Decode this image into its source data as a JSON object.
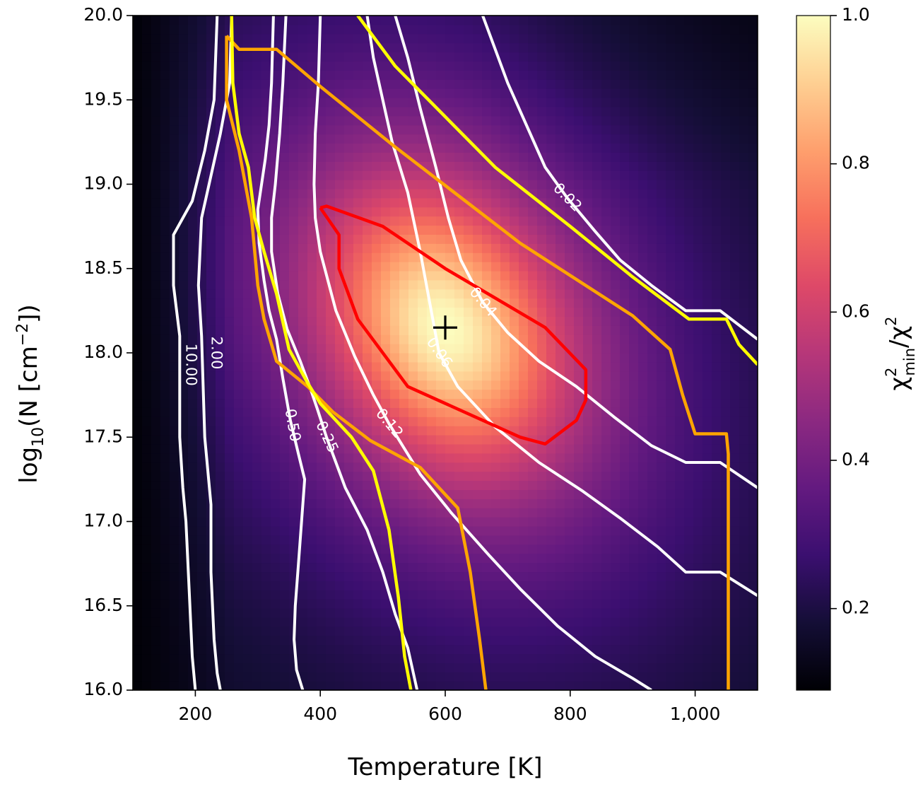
{
  "chart_data": {
    "type": "heatmap",
    "title": "",
    "xlabel": "Temperature [K]",
    "ylabel": {
      "main": "log",
      "sub": "10",
      "rest": "(N [cm",
      "sup": "−2",
      "end": "])"
    },
    "colorbar_label": {
      "main": "χ",
      "sup": "2",
      "sub": "min",
      "rest": "/χ",
      "sup2": "2"
    },
    "colormap": "magma",
    "xlim": [
      100,
      1100
    ],
    "ylim": [
      16.0,
      20.0
    ],
    "color_range": [
      0.09,
      1.0
    ],
    "x_ticks": [
      {
        "value": 200,
        "label": "200"
      },
      {
        "value": 400,
        "label": "400"
      },
      {
        "value": 600,
        "label": "600"
      },
      {
        "value": 800,
        "label": "800"
      },
      {
        "value": 1000,
        "label": "1,000"
      }
    ],
    "y_ticks": [
      {
        "value": 16.0,
        "label": "16.0"
      },
      {
        "value": 16.5,
        "label": "16.5"
      },
      {
        "value": 17.0,
        "label": "17.0"
      },
      {
        "value": 17.5,
        "label": "17.5"
      },
      {
        "value": 18.0,
        "label": "18.0"
      },
      {
        "value": 18.5,
        "label": "18.5"
      },
      {
        "value": 19.0,
        "label": "19.0"
      },
      {
        "value": 19.5,
        "label": "19.5"
      },
      {
        "value": 20.0,
        "label": "20.0"
      }
    ],
    "colorbar_ticks": [
      {
        "value": 0.2,
        "label": "0.2"
      },
      {
        "value": 0.4,
        "label": "0.4"
      },
      {
        "value": 0.6,
        "label": "0.6"
      },
      {
        "value": 0.8,
        "label": "0.8"
      },
      {
        "value": 1.0,
        "label": "1.0"
      }
    ],
    "best_fit": {
      "x": 600,
      "y": 18.15,
      "marker": "+"
    },
    "confidence_contours": [
      {
        "color": "#ff0000",
        "points": [
          [
            400,
            18.86
          ],
          [
            430,
            18.7
          ],
          [
            430,
            18.5
          ],
          [
            460,
            18.2
          ],
          [
            540,
            17.8
          ],
          [
            720,
            17.5
          ],
          [
            760,
            17.46
          ],
          [
            810,
            17.6
          ],
          [
            825,
            17.72
          ],
          [
            825,
            17.9
          ],
          [
            760,
            18.15
          ],
          [
            600,
            18.5
          ],
          [
            500,
            18.75
          ],
          [
            410,
            18.87
          ],
          [
            400,
            18.86
          ]
        ]
      },
      {
        "color": "#ffa500",
        "points": [
          [
            250,
            19.88
          ],
          [
            270,
            19.8
          ],
          [
            330,
            19.8
          ],
          [
            400,
            19.58
          ],
          [
            520,
            19.22
          ],
          [
            720,
            18.65
          ],
          [
            900,
            18.22
          ],
          [
            960,
            18.02
          ],
          [
            980,
            17.75
          ],
          [
            1000,
            17.52
          ],
          [
            1050,
            17.52
          ],
          [
            1053,
            17.4
          ],
          [
            1053,
            16.0
          ]
        ]
      },
      {
        "color": "#ffa500",
        "points": [
          [
            250,
            19.88
          ],
          [
            250,
            19.5
          ],
          [
            270,
            19.2
          ],
          [
            290,
            18.8
          ],
          [
            300,
            18.4
          ],
          [
            310,
            18.2
          ],
          [
            330,
            17.95
          ],
          [
            380,
            17.8
          ],
          [
            420,
            17.65
          ],
          [
            480,
            17.48
          ],
          [
            560,
            17.32
          ],
          [
            620,
            17.08
          ],
          [
            640,
            16.7
          ],
          [
            655,
            16.3
          ],
          [
            665,
            16.0
          ]
        ]
      },
      {
        "color": "#ffff00",
        "points": [
          [
            460,
            20.0
          ],
          [
            520,
            19.7
          ],
          [
            600,
            19.4
          ],
          [
            680,
            19.1
          ],
          [
            800,
            18.75
          ],
          [
            900,
            18.45
          ],
          [
            990,
            18.2
          ],
          [
            1050,
            18.2
          ],
          [
            1070,
            18.05
          ],
          [
            1100,
            17.93
          ]
        ]
      },
      {
        "color": "#ffff00",
        "points": [
          [
            258,
            20.0
          ],
          [
            260,
            19.6
          ],
          [
            270,
            19.3
          ],
          [
            285,
            19.1
          ],
          [
            295,
            18.8
          ],
          [
            310,
            18.6
          ],
          [
            330,
            18.35
          ],
          [
            350,
            18.02
          ],
          [
            380,
            17.82
          ],
          [
            400,
            17.7
          ],
          [
            450,
            17.5
          ],
          [
            485,
            17.3
          ],
          [
            510,
            16.95
          ],
          [
            525,
            16.55
          ],
          [
            535,
            16.2
          ],
          [
            545,
            16.0
          ]
        ]
      }
    ],
    "chi2_contours": [
      {
        "label": "10.00",
        "label_at": [
          192,
          17.93
        ],
        "label_rot": 90,
        "points": [
          [
            235,
            20.0
          ],
          [
            230,
            19.5
          ],
          [
            215,
            19.2
          ],
          [
            195,
            18.9
          ],
          [
            165,
            18.7
          ],
          [
            165,
            18.4
          ],
          [
            175,
            18.1
          ],
          [
            175,
            17.5
          ],
          [
            180,
            17.2
          ],
          [
            185,
            17.0
          ],
          [
            190,
            16.6
          ],
          [
            195,
            16.2
          ],
          [
            200,
            16.0
          ]
        ]
      },
      {
        "label": "2.00",
        "label_at": [
          233,
          18.0
        ],
        "label_rot": 90,
        "points": [
          [
            258,
            20.0
          ],
          [
            255,
            19.6
          ],
          [
            240,
            19.3
          ],
          [
            225,
            19.05
          ],
          [
            210,
            18.8
          ],
          [
            205,
            18.4
          ],
          [
            210,
            18.1
          ],
          [
            215,
            17.5
          ],
          [
            225,
            17.1
          ],
          [
            225,
            16.7
          ],
          [
            230,
            16.3
          ],
          [
            235,
            16.1
          ],
          [
            240,
            16.0
          ]
        ]
      },
      {
        "label": "0.50",
        "label_at": [
          355,
          17.57
        ],
        "label_rot": 80,
        "points": [
          [
            325,
            20.0
          ],
          [
            322,
            19.6
          ],
          [
            318,
            19.35
          ],
          [
            312,
            19.15
          ],
          [
            300,
            18.85
          ],
          [
            302,
            18.65
          ],
          [
            310,
            18.43
          ],
          [
            318,
            18.25
          ],
          [
            330,
            18.08
          ],
          [
            340,
            17.85
          ],
          [
            352,
            17.6
          ],
          [
            365,
            17.4
          ],
          [
            375,
            17.25
          ],
          [
            370,
            17.0
          ],
          [
            365,
            16.75
          ],
          [
            360,
            16.5
          ],
          [
            358,
            16.3
          ],
          [
            362,
            16.12
          ],
          [
            372,
            16.0
          ]
        ]
      },
      {
        "label": "0.25",
        "label_at": [
          410,
          17.5
        ],
        "label_rot": 65,
        "points": [
          [
            345,
            20.0
          ],
          [
            340,
            19.6
          ],
          [
            335,
            19.3
          ],
          [
            328,
            19.0
          ],
          [
            322,
            18.8
          ],
          [
            322,
            18.6
          ],
          [
            332,
            18.35
          ],
          [
            347,
            18.14
          ],
          [
            368,
            17.95
          ],
          [
            383,
            17.8
          ],
          [
            395,
            17.67
          ],
          [
            410,
            17.5
          ],
          [
            440,
            17.2
          ],
          [
            475,
            16.95
          ],
          [
            500,
            16.7
          ],
          [
            520,
            16.45
          ],
          [
            540,
            16.25
          ],
          [
            555,
            16.0
          ]
        ]
      },
      {
        "label": "0.12",
        "label_at": [
          510,
          17.58
        ],
        "label_rot": 50,
        "points": [
          [
            400,
            20.0
          ],
          [
            397,
            19.6
          ],
          [
            392,
            19.3
          ],
          [
            390,
            19.0
          ],
          [
            392,
            18.8
          ],
          [
            400,
            18.6
          ],
          [
            425,
            18.25
          ],
          [
            455,
            17.98
          ],
          [
            485,
            17.75
          ],
          [
            510,
            17.58
          ],
          [
            560,
            17.28
          ],
          [
            610,
            17.05
          ],
          [
            670,
            16.8
          ],
          [
            720,
            16.6
          ],
          [
            780,
            16.38
          ],
          [
            840,
            16.2
          ],
          [
            900,
            16.07
          ],
          [
            930,
            16.0
          ]
        ]
      },
      {
        "label": "0.06",
        "label_at": [
          590,
          18.0
        ],
        "label_rot": 55,
        "points": [
          [
            475,
            20.0
          ],
          [
            485,
            19.75
          ],
          [
            500,
            19.5
          ],
          [
            515,
            19.25
          ],
          [
            540,
            18.95
          ],
          [
            560,
            18.6
          ],
          [
            575,
            18.3
          ],
          [
            590,
            18.0
          ],
          [
            620,
            17.8
          ],
          [
            680,
            17.56
          ],
          [
            750,
            17.35
          ],
          [
            820,
            17.18
          ],
          [
            880,
            17.02
          ],
          [
            940,
            16.85
          ],
          [
            985,
            16.7
          ],
          [
            1040,
            16.7
          ],
          [
            1100,
            16.56
          ]
        ]
      },
      {
        "label": "0.04",
        "label_at": [
          660,
          18.3
        ],
        "label_rot": 50,
        "points": [
          [
            520,
            20.0
          ],
          [
            540,
            19.75
          ],
          [
            560,
            19.45
          ],
          [
            585,
            19.1
          ],
          [
            605,
            18.8
          ],
          [
            625,
            18.55
          ],
          [
            660,
            18.3
          ],
          [
            700,
            18.12
          ],
          [
            750,
            17.95
          ],
          [
            810,
            17.8
          ],
          [
            870,
            17.62
          ],
          [
            930,
            17.45
          ],
          [
            985,
            17.35
          ],
          [
            1040,
            17.35
          ],
          [
            1100,
            17.2
          ]
        ]
      },
      {
        "label": "0.02",
        "label_at": [
          795,
          18.92
        ],
        "label_rot": 45,
        "points": [
          [
            660,
            20.0
          ],
          [
            680,
            19.8
          ],
          [
            700,
            19.6
          ],
          [
            730,
            19.35
          ],
          [
            760,
            19.1
          ],
          [
            795,
            18.92
          ],
          [
            840,
            18.72
          ],
          [
            880,
            18.55
          ],
          [
            930,
            18.4
          ],
          [
            985,
            18.25
          ],
          [
            1040,
            18.25
          ],
          [
            1100,
            18.08
          ]
        ]
      }
    ]
  }
}
